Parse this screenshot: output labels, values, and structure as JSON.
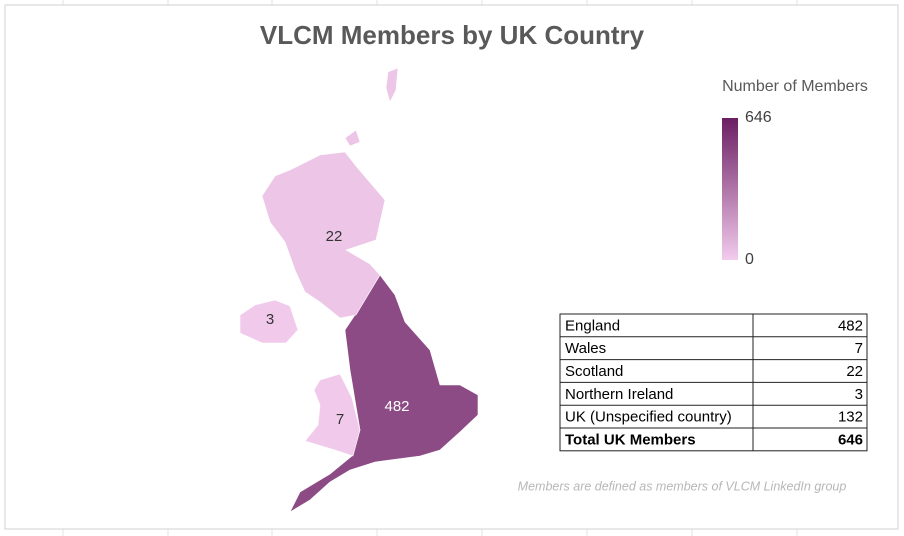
{
  "chart_data": {
    "type": "choropleth",
    "title": "VLCM Members by UK Country",
    "legend_title": "Number of Members",
    "categories": [
      "England",
      "Wales",
      "Scotland",
      "Northern Ireland"
    ],
    "values": [
      482,
      7,
      22,
      3
    ],
    "color_range": [
      "#f2cbec",
      "#6b1f63"
    ],
    "scale_lim": [
      0,
      646
    ],
    "scale_ticks": [
      0,
      646
    ],
    "footnote": "Members are defined as members of VLCM LinkedIn group"
  },
  "table": {
    "rows": [
      [
        "England",
        "482"
      ],
      [
        "Wales",
        "7"
      ],
      [
        "Scotland",
        "22"
      ],
      [
        "Northern Ireland",
        "3"
      ],
      [
        "UK (Unspecified country)",
        "132"
      ],
      [
        "Total UK Members",
        "646"
      ]
    ]
  }
}
